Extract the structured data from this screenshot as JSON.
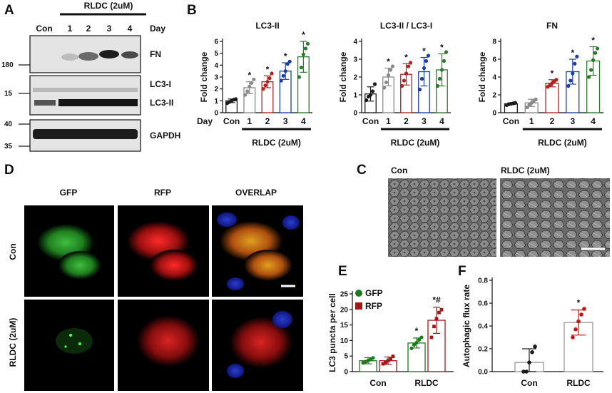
{
  "panel_labels": {
    "A": "A",
    "B": "B",
    "C": "C",
    "D": "D",
    "E": "E",
    "F": "F"
  },
  "panel_a": {
    "treatment_label": "RLDC (2uM)",
    "lanes": [
      "Con",
      "1",
      "2",
      "3",
      "4"
    ],
    "lanes_unit": "Day",
    "markers": [
      "180",
      "15",
      "40",
      "35"
    ],
    "bands": [
      "FN",
      "LC3-I",
      "LC3-II",
      "GAPDH"
    ]
  },
  "panel_c": {
    "labels": [
      "Con",
      "RLDC (2uM)"
    ]
  },
  "panel_d": {
    "columns": [
      "GFP",
      "RFP",
      "OVERLAP"
    ],
    "rows": [
      "Con",
      "RLDC (2uM)"
    ]
  },
  "colors": {
    "con": "#1a1a1a",
    "day1": "#8a8a8a",
    "day2": "#b22222",
    "day3": "#1f3f9f",
    "day4": "#2a7a2a",
    "gfp": "#1e7a1e",
    "rfp": "#a01818",
    "rldc_f": "#c01818"
  },
  "chart_data": [
    {
      "id": "B-LC3-II",
      "type": "bar",
      "title": "LC3-II",
      "ylabel": "Fold  change",
      "xlabel_prefix": "Day",
      "group_label": "RLDC (2uM)",
      "categories": [
        "Con",
        "1",
        "2",
        "3",
        "4"
      ],
      "values": [
        1.0,
        2.1,
        2.6,
        3.5,
        4.7
      ],
      "sd": [
        0.15,
        0.5,
        0.5,
        0.7,
        1.3
      ],
      "ylim": [
        0,
        6
      ],
      "yticks": [
        0,
        1,
        2,
        3,
        4,
        5,
        6
      ],
      "significance": [
        "",
        "*",
        "*",
        "*",
        "*"
      ],
      "points": [
        [
          0.8,
          0.9,
          1.0,
          1.1,
          1.15
        ],
        [
          1.5,
          1.8,
          2.2,
          2.5,
          2.8
        ],
        [
          2.0,
          2.3,
          2.6,
          2.9,
          3.3
        ],
        [
          2.7,
          3.1,
          3.5,
          4.1,
          4.3
        ],
        [
          3.0,
          3.8,
          4.9,
          5.4,
          5.8
        ]
      ]
    },
    {
      "id": "B-ratio",
      "type": "bar",
      "title": "LC3-II / LC3-I",
      "ylabel": "Fold  change",
      "xlabel_prefix": "",
      "group_label": "RLDC (2uM)",
      "categories": [
        "Con",
        "1",
        "2",
        "3",
        "4"
      ],
      "values": [
        1.05,
        2.0,
        2.15,
        2.3,
        2.4
      ],
      "sd": [
        0.4,
        0.5,
        0.6,
        0.8,
        0.9
      ],
      "ylim": [
        0,
        4
      ],
      "yticks": [
        0,
        1,
        2,
        3,
        4
      ],
      "significance": [
        "",
        "*",
        "*",
        "*",
        "*"
      ],
      "points": [
        [
          0.7,
          0.9,
          1.0,
          1.2,
          1.6
        ],
        [
          1.4,
          1.7,
          2.1,
          2.4,
          2.6
        ],
        [
          1.5,
          1.8,
          2.2,
          2.6,
          2.8
        ],
        [
          1.3,
          1.9,
          2.5,
          2.9,
          3.2
        ],
        [
          1.5,
          1.9,
          2.4,
          2.9,
          3.4
        ]
      ]
    },
    {
      "id": "B-FN",
      "type": "bar",
      "title": "FN",
      "ylabel": "Fold  change",
      "xlabel_prefix": "",
      "group_label": "RLDC (2uM)",
      "categories": [
        "Con",
        "1",
        "2",
        "3",
        "4"
      ],
      "values": [
        1.0,
        1.1,
        3.3,
        4.6,
        5.8
      ],
      "sd": [
        0.1,
        0.4,
        0.4,
        1.4,
        1.6
      ],
      "ylim": [
        0,
        8
      ],
      "yticks": [
        0,
        2,
        4,
        6,
        8
      ],
      "significance": [
        "",
        "",
        "*",
        "*",
        "*"
      ],
      "points": [
        [
          0.85,
          0.95,
          1.0,
          1.05,
          1.1
        ],
        [
          0.6,
          0.9,
          1.1,
          1.3,
          1.5
        ],
        [
          2.9,
          3.1,
          3.3,
          3.5,
          3.7
        ],
        [
          3.0,
          3.6,
          4.4,
          5.5,
          6.3
        ],
        [
          4.0,
          4.8,
          5.9,
          6.7,
          7.2
        ]
      ]
    },
    {
      "id": "E",
      "type": "bar",
      "ylabel": "LC3 puncta per cell",
      "categories": [
        "Con",
        "RLDC"
      ],
      "series": [
        {
          "name": "GFP",
          "values": [
            3.5,
            9.2
          ],
          "sd": [
            1.0,
            1.6
          ],
          "points": [
            [
              2.8,
              3.2,
              3.5,
              3.9,
              4.4
            ],
            [
              7.5,
              8.6,
              9.3,
              10.2,
              11.0
            ]
          ],
          "significance": [
            "",
            "*"
          ]
        },
        {
          "name": "RFP",
          "values": [
            3.5,
            16.5
          ],
          "sd": [
            1.2,
            4.2
          ],
          "points": [
            [
              2.5,
              3.0,
              3.5,
              4.0,
              4.9
            ],
            [
              11.0,
              14.5,
              17.0,
              19.0,
              19.9
            ]
          ],
          "significance": [
            "",
            "*#"
          ]
        }
      ],
      "ylim": [
        0,
        25
      ],
      "yticks": [
        0,
        5,
        10,
        15,
        20,
        25
      ]
    },
    {
      "id": "F",
      "type": "bar",
      "ylabel": "Autophagic  flux rate",
      "categories": [
        "Con",
        "RLDC"
      ],
      "values": [
        0.08,
        0.43
      ],
      "sd": [
        0.12,
        0.11
      ],
      "points": [
        [
          0.0,
          0.0,
          0.08,
          0.17,
          0.22
        ],
        [
          0.3,
          0.37,
          0.44,
          0.5,
          0.55
        ]
      ],
      "significance": [
        "",
        "*"
      ],
      "ylim": [
        0,
        0.8
      ],
      "yticks": [
        "0.0",
        "0.2",
        "0.4",
        "0.6",
        "0.8"
      ]
    }
  ]
}
